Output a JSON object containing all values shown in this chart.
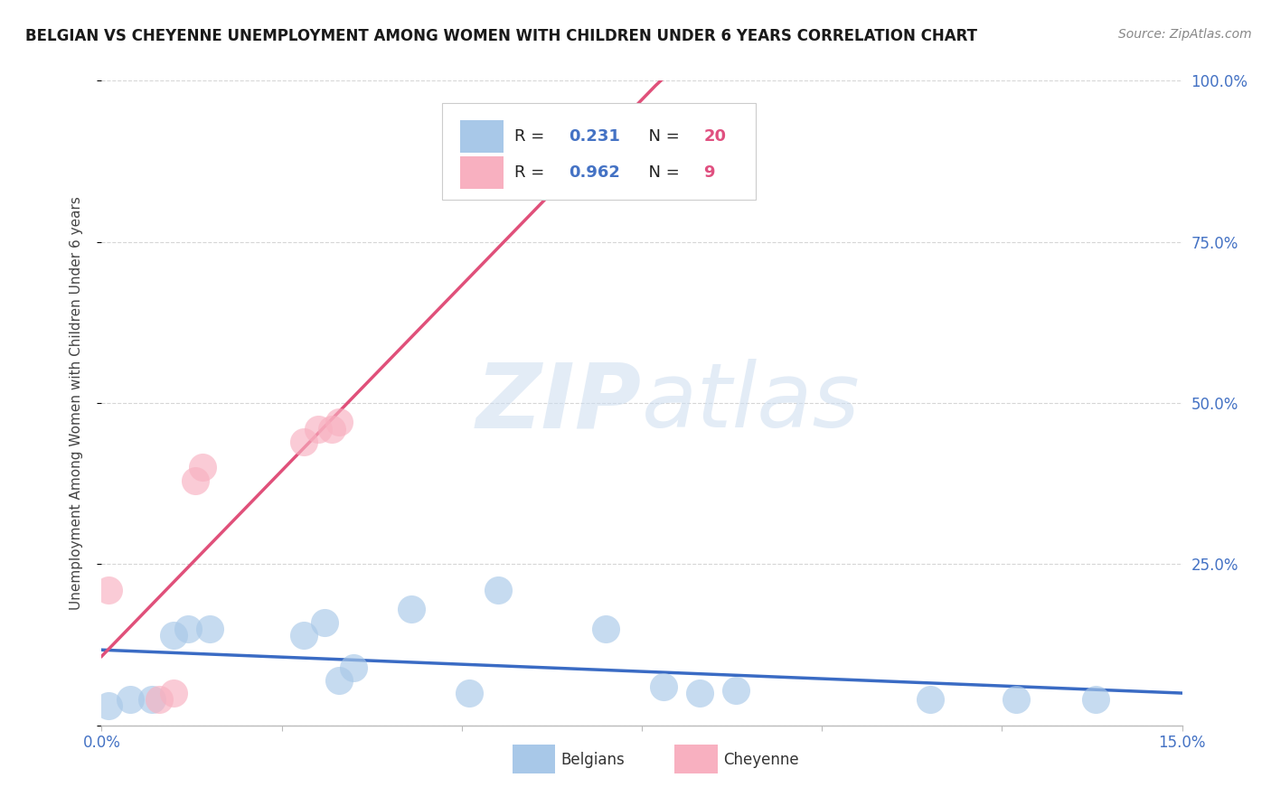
{
  "title": "BELGIAN VS CHEYENNE UNEMPLOYMENT AMONG WOMEN WITH CHILDREN UNDER 6 YEARS CORRELATION CHART",
  "source": "Source: ZipAtlas.com",
  "ylabel": "Unemployment Among Women with Children Under 6 years",
  "xlim": [
    0.0,
    0.15
  ],
  "ylim": [
    0.0,
    1.0
  ],
  "yticks": [
    0.0,
    0.25,
    0.5,
    0.75,
    1.0
  ],
  "ytick_labels": [
    "",
    "25.0%",
    "50.0%",
    "75.0%",
    "100.0%"
  ],
  "xticks": [
    0.0,
    0.025,
    0.05,
    0.075,
    0.1,
    0.125,
    0.15
  ],
  "watermark": "ZIPatlas",
  "belgian_R": 0.231,
  "belgian_N": 20,
  "cheyenne_R": 0.962,
  "cheyenne_N": 9,
  "belgian_color": "#a8c8e8",
  "cheyenne_color": "#f8b0c0",
  "belgian_line_color": "#3a6bc4",
  "cheyenne_line_color": "#e0507a",
  "belgian_points_x": [
    0.001,
    0.004,
    0.007,
    0.01,
    0.012,
    0.015,
    0.028,
    0.031,
    0.033,
    0.035,
    0.043,
    0.051,
    0.055,
    0.07,
    0.078,
    0.083,
    0.088,
    0.115,
    0.127,
    0.138
  ],
  "belgian_points_y": [
    0.03,
    0.04,
    0.04,
    0.14,
    0.15,
    0.15,
    0.14,
    0.16,
    0.07,
    0.09,
    0.18,
    0.05,
    0.21,
    0.15,
    0.06,
    0.05,
    0.055,
    0.04,
    0.04,
    0.04
  ],
  "cheyenne_points_x": [
    0.001,
    0.008,
    0.01,
    0.013,
    0.014,
    0.028,
    0.03,
    0.032,
    0.033
  ],
  "cheyenne_points_y": [
    0.21,
    0.04,
    0.05,
    0.38,
    0.4,
    0.44,
    0.46,
    0.46,
    0.47
  ],
  "background_color": "#ffffff",
  "grid_color": "#cccccc",
  "title_color": "#1a1a1a",
  "axis_label_color": "#4472c4",
  "r_value_color": "#4472c4",
  "n_value_color": "#e05080"
}
